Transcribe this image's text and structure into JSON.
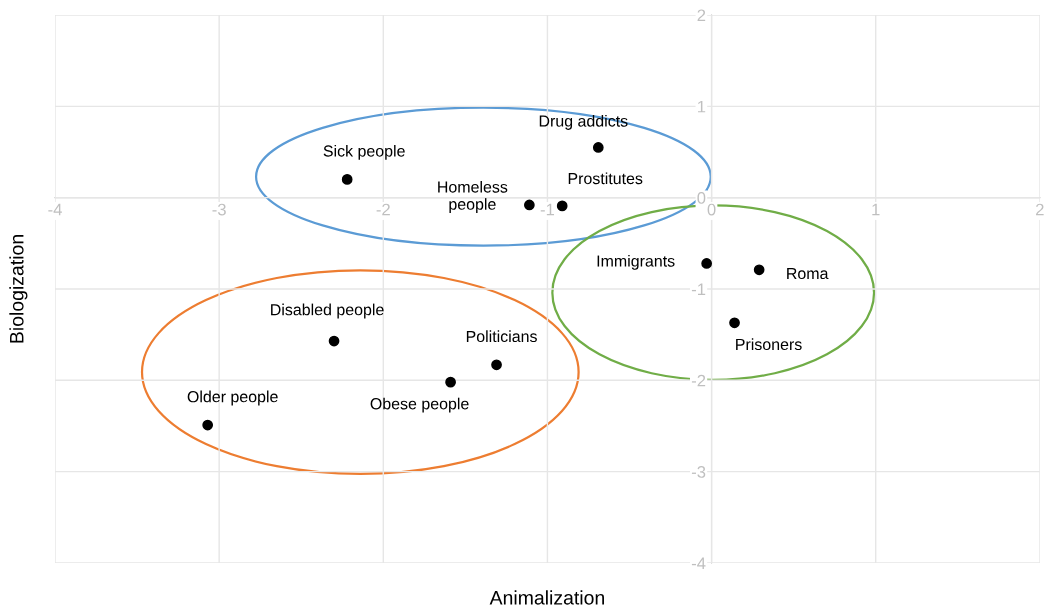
{
  "chart_data": {
    "type": "scatter",
    "xlabel": "Animalization",
    "ylabel": "Biologization",
    "x": [
      -2.22,
      -0.69,
      -1.11,
      -0.91,
      -0.03,
      0.29,
      0.14,
      -2.3,
      -1.31,
      -1.59,
      -3.07
    ],
    "series": [
      {
        "color": "#000000",
        "values": [
          0.2,
          0.55,
          -0.08,
          -0.09,
          -0.72,
          -0.79,
          -1.37,
          -1.57,
          -1.83,
          -2.02,
          -2.49
        ]
      }
    ],
    "annotations": [
      {
        "text": "Sick people",
        "x": -2.22,
        "y": 0.2
      },
      {
        "text": "Drug addicts",
        "x": -0.69,
        "y": 0.55
      },
      {
        "text": "Homeless\npeople",
        "x": -1.11,
        "y": -0.08
      },
      {
        "text": "Prostitutes",
        "x": -0.91,
        "y": -0.09
      },
      {
        "text": "Immigrants",
        "x": -0.03,
        "y": -0.72
      },
      {
        "text": "Roma",
        "x": 0.29,
        "y": -0.79
      },
      {
        "text": "Prisoners",
        "x": 0.14,
        "y": -1.37
      },
      {
        "text": "Disabled people",
        "x": -2.3,
        "y": -1.57
      },
      {
        "text": "Politicians",
        "x": -1.31,
        "y": -1.83
      },
      {
        "text": "Obese people",
        "x": -1.59,
        "y": -2.02
      },
      {
        "text": "Older people",
        "x": -3.07,
        "y": -2.49
      }
    ],
    "xlim": [
      -4,
      2
    ],
    "ylim": [
      -4,
      2
    ],
    "xticks": [
      -4,
      -3,
      -2,
      -1,
      0,
      1,
      2
    ],
    "yticks": [
      -4,
      -3,
      -2,
      -1,
      0,
      1,
      2
    ],
    "grid": true,
    "marker": "circle"
  }
}
